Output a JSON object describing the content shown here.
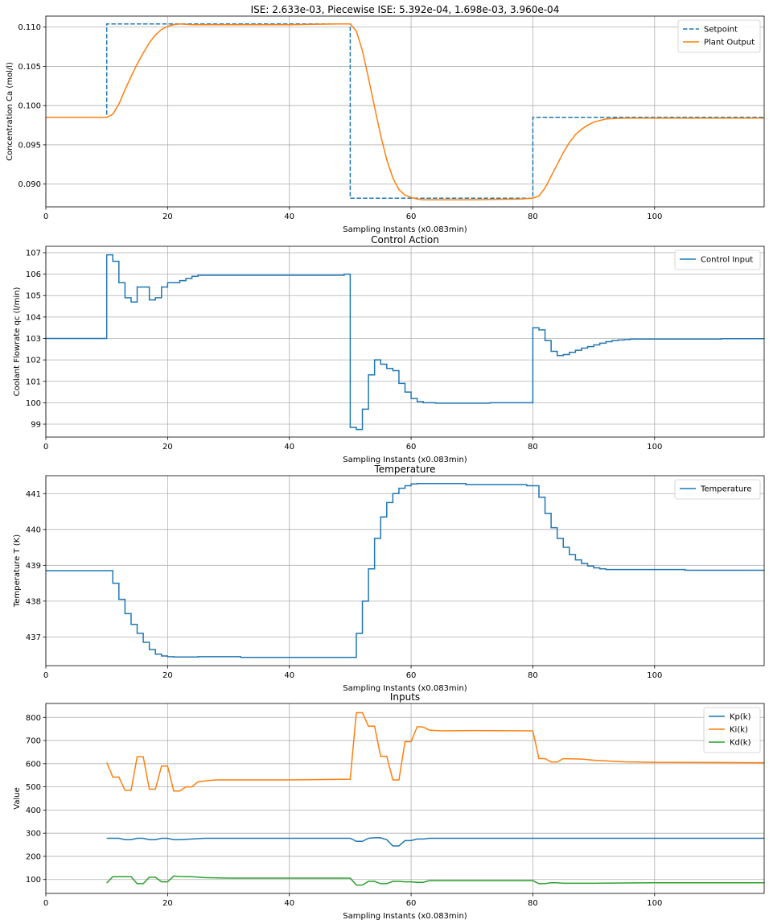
{
  "chart_data": [
    {
      "type": "line",
      "title": "ISE: 2.633e-03, Piecewise ISE: 5.392e-04, 1.698e-03, 3.960e-04",
      "xlabel": "Sampling Instants (x0.083min)",
      "ylabel": "Concentration Ca (mol/l)",
      "xlim": [
        0,
        118
      ],
      "ylim": [
        0.0871,
        0.1114
      ],
      "xticks": [
        0,
        20,
        40,
        60,
        80,
        100
      ],
      "yticks": [
        0.09,
        0.095,
        0.1,
        0.105,
        0.11
      ],
      "ytick_labels": [
        "0.090",
        "0.095",
        "0.100",
        "0.105",
        "0.110"
      ],
      "grid": true,
      "legend": "top-right",
      "series": [
        {
          "name": "Setpoint",
          "style": "dashed",
          "color": "#1f77b4",
          "x": [
            0,
            10,
            10,
            50,
            50,
            80,
            80,
            118
          ],
          "y": [
            0.0985,
            0.0985,
            0.1104,
            0.1104,
            0.0882,
            0.0882,
            0.0985,
            0.0985
          ]
        },
        {
          "name": "Plant Output",
          "style": "solid",
          "color": "#ff7f0e",
          "x": [
            0,
            10,
            11,
            12,
            13,
            14,
            15,
            16,
            17,
            18,
            19,
            20,
            21,
            22,
            24,
            30,
            40,
            48,
            50,
            51,
            52,
            53,
            54,
            55,
            56,
            57,
            58,
            59,
            60,
            61,
            62,
            64,
            70,
            78,
            80,
            81,
            82,
            83,
            84,
            85,
            86,
            87,
            88,
            89,
            90,
            92,
            95,
            100,
            118
          ],
          "y": [
            0.0985,
            0.0985,
            0.0989,
            0.1002,
            0.102,
            0.1037,
            0.1053,
            0.1067,
            0.108,
            0.109,
            0.1097,
            0.1101,
            0.1103,
            0.1104,
            0.1103,
            0.1103,
            0.1103,
            0.1104,
            0.1104,
            0.1095,
            0.107,
            0.1035,
            0.0998,
            0.0962,
            0.0931,
            0.0908,
            0.0893,
            0.0886,
            0.0883,
            0.0881,
            0.088,
            0.088,
            0.088,
            0.0881,
            0.0882,
            0.0885,
            0.0895,
            0.091,
            0.0925,
            0.094,
            0.0953,
            0.0963,
            0.097,
            0.0975,
            0.0979,
            0.0983,
            0.0984,
            0.0984,
            0.0984
          ]
        }
      ]
    },
    {
      "type": "line",
      "title": "Control Action",
      "xlabel": "Sampling Instants (x0.083min)",
      "ylabel": "Coolant Flowrate qc (l/min)",
      "xlim": [
        0,
        118
      ],
      "ylim": [
        98.4,
        107.3
      ],
      "xticks": [
        0,
        20,
        40,
        60,
        80,
        100
      ],
      "yticks": [
        99,
        100,
        101,
        102,
        103,
        104,
        105,
        106,
        107
      ],
      "ytick_labels": [
        "99",
        "100",
        "101",
        "102",
        "103",
        "104",
        "105",
        "106",
        "107"
      ],
      "grid": true,
      "legend": "top-right",
      "series": [
        {
          "name": "Control Input",
          "style": "step",
          "color": "#1f77b4",
          "x": [
            0,
            10,
            11,
            12,
            13,
            14,
            15,
            16,
            17,
            18,
            19,
            20,
            21,
            22,
            23,
            24,
            25,
            30,
            40,
            48,
            49,
            50,
            51,
            52,
            53,
            54,
            55,
            56,
            57,
            58,
            59,
            60,
            61,
            62,
            63,
            64,
            65,
            70,
            73,
            75,
            80,
            81,
            82,
            83,
            84,
            85,
            86,
            87,
            88,
            89,
            90,
            91,
            92,
            93,
            94,
            95,
            96,
            100,
            110,
            111,
            118
          ],
          "y": [
            103.0,
            106.9,
            106.6,
            105.6,
            104.9,
            104.7,
            105.4,
            105.4,
            104.8,
            104.9,
            105.4,
            105.6,
            105.6,
            105.7,
            105.8,
            105.9,
            105.95,
            105.95,
            105.95,
            105.95,
            106.0,
            98.85,
            98.75,
            99.7,
            101.3,
            102.0,
            101.8,
            101.6,
            101.5,
            100.9,
            100.5,
            100.2,
            100.05,
            100.0,
            100.0,
            99.98,
            99.98,
            99.98,
            100.0,
            100.0,
            103.5,
            103.4,
            102.9,
            102.4,
            102.2,
            102.25,
            102.35,
            102.45,
            102.55,
            102.62,
            102.7,
            102.78,
            102.85,
            102.9,
            102.93,
            102.95,
            102.97,
            102.97,
            102.97,
            102.99,
            102.99
          ]
        }
      ]
    },
    {
      "type": "line",
      "title": "Temperature",
      "xlabel": "Sampling Instants (x0.083min)",
      "ylabel": "Temperature T (K)",
      "xlim": [
        0,
        118
      ],
      "ylim": [
        436.2,
        441.5
      ],
      "xticks": [
        0,
        20,
        40,
        60,
        80,
        100
      ],
      "yticks": [
        437,
        438,
        439,
        440,
        441
      ],
      "ytick_labels": [
        "437",
        "438",
        "439",
        "440",
        "441"
      ],
      "grid": true,
      "legend": "top-right",
      "series": [
        {
          "name": "Temperature",
          "style": "step",
          "color": "#1f77b4",
          "x": [
            0,
            11,
            12,
            13,
            14,
            15,
            16,
            17,
            18,
            19,
            20,
            21,
            25,
            32,
            40,
            51,
            52,
            53,
            54,
            55,
            56,
            57,
            58,
            59,
            60,
            61,
            63,
            69,
            70,
            79,
            81,
            82,
            83,
            84,
            85,
            86,
            87,
            88,
            89,
            90,
            91,
            92,
            95,
            105,
            118
          ],
          "y": [
            438.85,
            438.5,
            438.05,
            437.65,
            437.35,
            437.1,
            436.85,
            436.65,
            436.52,
            436.47,
            436.45,
            436.44,
            436.45,
            436.43,
            436.43,
            437.1,
            438.0,
            438.9,
            439.75,
            440.35,
            440.75,
            441.0,
            441.15,
            441.22,
            441.27,
            441.28,
            441.28,
            441.25,
            441.25,
            441.22,
            440.9,
            440.45,
            440.05,
            439.75,
            439.5,
            439.3,
            439.15,
            439.05,
            438.98,
            438.93,
            438.9,
            438.88,
            438.88,
            438.86,
            438.86
          ]
        }
      ]
    },
    {
      "type": "line",
      "title": "Inputs",
      "xlabel": "Sampling Instants (x0.083min)",
      "ylabel": "Value",
      "xlim": [
        0,
        118
      ],
      "ylim": [
        40,
        860
      ],
      "xticks": [
        0,
        20,
        40,
        60,
        80,
        100
      ],
      "yticks": [
        100,
        200,
        300,
        400,
        500,
        600,
        700,
        800
      ],
      "ytick_labels": [
        "100",
        "200",
        "300",
        "400",
        "500",
        "600",
        "700",
        "800"
      ],
      "grid": true,
      "legend": "top-right",
      "series": [
        {
          "name": "Kp(k)",
          "style": "solid",
          "color": "#1f77b4",
          "x": [
            10,
            12,
            13,
            14,
            15,
            16,
            17,
            18,
            19,
            20,
            21,
            22,
            24,
            26,
            30,
            40,
            50,
            51,
            52,
            53,
            54,
            55,
            56,
            57,
            58,
            59,
            60,
            61,
            62,
            63,
            70,
            80,
            90,
            100,
            118
          ],
          "y": [
            278,
            278,
            272,
            272,
            278,
            278,
            272,
            272,
            278,
            278,
            272,
            272,
            275,
            278,
            278,
            278,
            278,
            265,
            265,
            278,
            280,
            280,
            272,
            245,
            245,
            268,
            268,
            275,
            275,
            278,
            278,
            278,
            278,
            278,
            278
          ]
        },
        {
          "name": "Ki(k)",
          "style": "solid",
          "color": "#ff7f0e",
          "x": [
            10,
            11,
            12,
            13,
            14,
            15,
            16,
            17,
            18,
            19,
            20,
            21,
            22,
            23,
            24,
            25,
            26,
            27,
            28,
            30,
            40,
            50,
            51,
            52,
            53,
            54,
            55,
            56,
            57,
            58,
            59,
            60,
            61,
            62,
            63,
            65,
            70,
            80,
            81,
            82,
            83,
            84,
            85,
            88,
            90,
            92,
            95,
            100,
            118
          ],
          "y": [
            605,
            542,
            542,
            485,
            485,
            630,
            630,
            490,
            490,
            590,
            590,
            482,
            482,
            500,
            500,
            522,
            525,
            528,
            530,
            530,
            530,
            533,
            820,
            820,
            762,
            762,
            632,
            632,
            530,
            530,
            695,
            695,
            760,
            758,
            745,
            742,
            743,
            742,
            622,
            622,
            607,
            607,
            622,
            620,
            615,
            612,
            608,
            606,
            604
          ]
        },
        {
          "name": "Kd(k)",
          "style": "solid",
          "color": "#2ca02c",
          "x": [
            10,
            11,
            12,
            13,
            14,
            15,
            16,
            17,
            18,
            19,
            20,
            21,
            22,
            24,
            26,
            30,
            40,
            50,
            51,
            52,
            53,
            54,
            55,
            56,
            57,
            58,
            59,
            60,
            61,
            62,
            63,
            70,
            80,
            81,
            82,
            83,
            84,
            85,
            90,
            100,
            118
          ],
          "y": [
            85,
            112,
            112,
            112,
            112,
            82,
            82,
            110,
            110,
            90,
            90,
            115,
            113,
            112,
            108,
            106,
            106,
            106,
            76,
            76,
            92,
            92,
            82,
            82,
            92,
            92,
            90,
            90,
            88,
            88,
            95,
            95,
            95,
            82,
            82,
            86,
            86,
            84,
            84,
            86,
            86
          ]
        }
      ]
    }
  ]
}
